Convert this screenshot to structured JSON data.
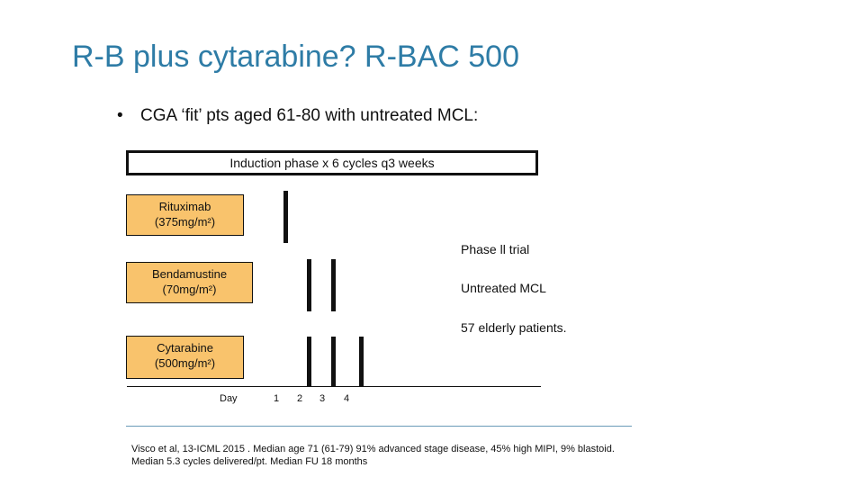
{
  "slide": {
    "title": "R-B plus cytarabine? R-BAC 500",
    "bullet": "CGA ‘fit’ pts aged 61-80 with untreated MCL:",
    "bullet_marker": "•"
  },
  "diagram": {
    "induction_label": "Induction phase x 6 cycles q3 weeks",
    "drugs": [
      {
        "name": "Rituximab",
        "dose": "(375mg/m²)"
      },
      {
        "name": "Bendamustine",
        "dose": "(70mg/m²)"
      },
      {
        "name": "Cytarabine",
        "dose": "(500mg/m²)"
      }
    ],
    "day_label": "Day",
    "days": [
      "1",
      "2",
      "3",
      "4"
    ],
    "drug_fill_color": "#f9c36c"
  },
  "side_notes": [
    "Phase ll trial",
    "Untreated MCL",
    "57 elderly patients."
  ],
  "reference": "Visco et al, 13-ICML 2015 . Median age 71 (61-79) 91% advanced stage disease, 45% high MIPI, 9% blastoid. Median 5.3 cycles delivered/pt. Median FU 18 months"
}
